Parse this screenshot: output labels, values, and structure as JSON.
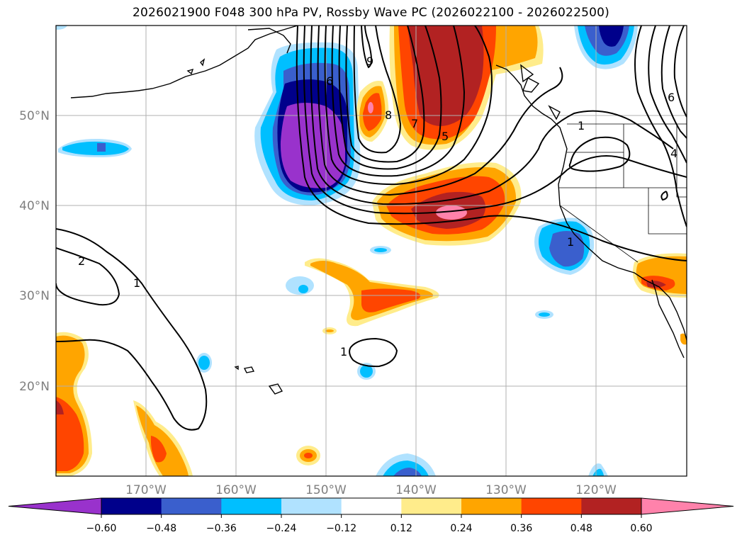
{
  "title": "2026021900 F048 300 hPa PV, Rossby Wave PC (2026022100 - 2026022500)",
  "map": {
    "lat_labels": [
      "50°N",
      "40°N",
      "30°N",
      "20°N"
    ],
    "lon_labels": [
      "170°W",
      "160°W",
      "150°W",
      "140°W",
      "130°W",
      "120°W"
    ],
    "contour_labels": [
      "9",
      "6",
      "8",
      "7",
      "5",
      "2",
      "1",
      "1",
      "1",
      "6",
      "4",
      "1"
    ]
  },
  "colorbar": {
    "ticks": [
      "−0.60",
      "−0.48",
      "−0.36",
      "−0.24",
      "−0.12",
      "0.12",
      "0.24",
      "0.36",
      "0.48",
      "0.60"
    ],
    "colors": [
      "#9932cc",
      "#00008b",
      "#3a5fcd",
      "#00bfff",
      "#b0e2ff",
      "#ffffff",
      "#ffec8b",
      "#ffa500",
      "#ff4500",
      "#b22222",
      "#ff82ab"
    ]
  }
}
